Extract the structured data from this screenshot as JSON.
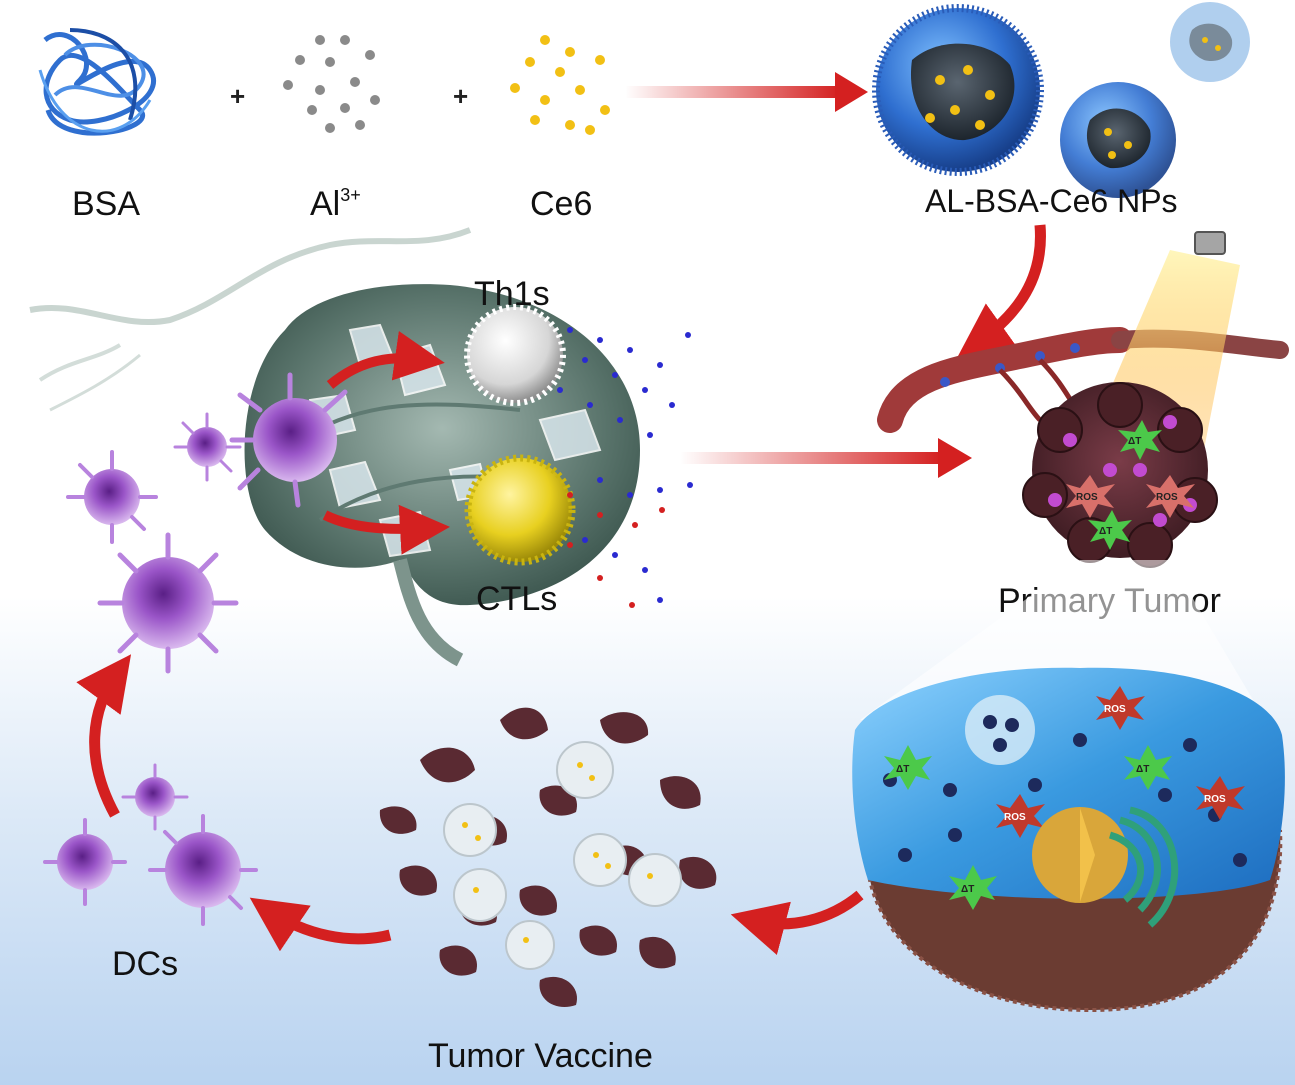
{
  "labels": {
    "bsa": "BSA",
    "al": "Al",
    "al_charge": "3+",
    "ce6": "Ce6",
    "nps": "AL-BSA-Ce6 NPs",
    "th1s": "Th1s",
    "ctls": "CTLs",
    "primary_tumor": "Primary Tumor",
    "dcs": "DCs",
    "tumor_vaccine": "Tumor Vaccine",
    "plus_1": "+",
    "plus_2": "+"
  },
  "tags": {
    "ros": "ROS",
    "delta_t": "ΔT"
  },
  "colors": {
    "arrow_red": "#d42020",
    "bsa_blue": "#2f6fd0",
    "al_grey": "#8a8a8a",
    "ce6_yellow": "#f2c014",
    "dc_purple": "#9a55c8",
    "ctl_yellow": "#e8d020",
    "th1_white": "#e6e6e6",
    "tumor_maroon": "#5a2a32",
    "cell_water": "#4fa8e0",
    "ros_red": "#c0392b",
    "heat_green": "#4cc94a"
  }
}
